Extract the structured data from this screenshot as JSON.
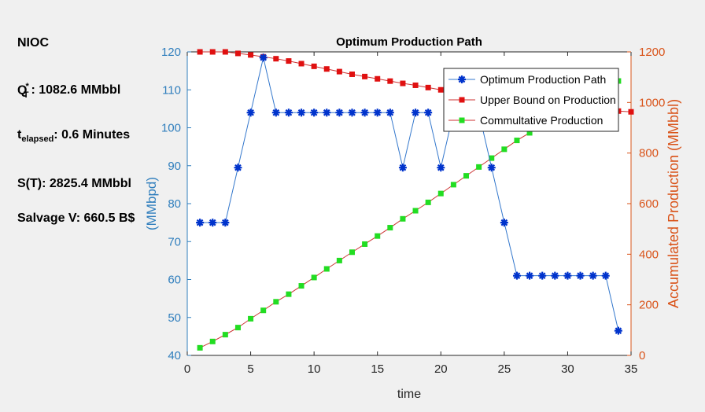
{
  "info_panel": {
    "company": "NIOC",
    "q_symbol": "Q",
    "q_sub": "T",
    "q_sup": "*",
    "q_value": ":  1082.6  MMbbl",
    "t_symbol": "t",
    "t_sub": "elapsed",
    "t_value": ":  0.6 Minutes",
    "s_text": "S(T): 2825.4  MMbbl",
    "salvage_text": "Salvage V: 660.5  B$"
  },
  "colors": {
    "figure_bg": "#f0f0f0",
    "axes_bg": "#ffffff",
    "left_axis": "#2f7ebd",
    "right_axis": "#d95319",
    "series_blue": "#0033cc",
    "series_red": "#e01010",
    "series_green": "#22dd22",
    "line_blue": "#3377cc",
    "line_red": "#cc3333",
    "line_green": "#cc3333"
  },
  "chart_data": {
    "type": "line",
    "title": "Optimum Production Path",
    "xlabel": "time",
    "ylabel_left": "(MMbpd)",
    "ylabel_right": "Accumulated Production (MMbbl)",
    "xlim": [
      0,
      35
    ],
    "ylim_left": [
      40,
      120
    ],
    "ylim_right": [
      0,
      1200
    ],
    "x_ticks": [
      0,
      5,
      10,
      15,
      20,
      25,
      30,
      35
    ],
    "y_left_ticks": [
      40,
      50,
      60,
      70,
      80,
      90,
      100,
      110,
      120
    ],
    "y_right_ticks": [
      0,
      200,
      400,
      600,
      800,
      1000,
      1200
    ],
    "legend_position": "top-right",
    "series": [
      {
        "name": "Optimum Production Path",
        "axis": "left",
        "marker": "star",
        "x": [
          1,
          2,
          3,
          4,
          5,
          6,
          7,
          8,
          9,
          10,
          11,
          12,
          13,
          14,
          15,
          16,
          17,
          18,
          19,
          20,
          21,
          22,
          23,
          24,
          25,
          26,
          27,
          28,
          29,
          30,
          31,
          32,
          33,
          34
        ],
        "values": [
          75,
          75,
          75,
          89.5,
          104,
          118.5,
          104,
          104,
          104,
          104,
          104,
          104,
          104,
          104,
          104,
          104,
          89.5,
          104,
          104,
          89.5,
          104,
          104,
          104,
          89.5,
          75,
          61,
          61,
          61,
          61,
          61,
          61,
          61,
          61,
          46.5
        ]
      },
      {
        "name": "Upper Bound on Production",
        "axis": "left",
        "marker": "square",
        "x": [
          1,
          2,
          3,
          4,
          5,
          6,
          7,
          8,
          9,
          10,
          11,
          12,
          13,
          14,
          15,
          16,
          17,
          18,
          19,
          20,
          21,
          22,
          23,
          24,
          25,
          26,
          27,
          28,
          29,
          30,
          31,
          32,
          33,
          34,
          35
        ],
        "values": [
          120,
          120,
          120,
          119.6,
          119.2,
          118.7,
          118.2,
          117.6,
          116.9,
          116.2,
          115.5,
          114.8,
          114.1,
          113.5,
          112.9,
          112.3,
          111.7,
          111.2,
          110.6,
          110,
          109.5,
          109,
          108.5,
          108,
          107.5,
          107.1,
          106.7,
          106.3,
          105.9,
          105.5,
          105.2,
          104.9,
          104.6,
          104.4,
          104.2
        ]
      },
      {
        "name": "Commultative Production",
        "axis": "right",
        "marker": "square",
        "x": [
          1,
          2,
          3,
          4,
          5,
          6,
          7,
          8,
          9,
          10,
          11,
          12,
          13,
          14,
          15,
          16,
          17,
          18,
          19,
          20,
          21,
          22,
          23,
          24,
          25,
          26,
          27,
          28,
          29,
          30,
          31,
          32,
          33,
          34
        ],
        "values": [
          30,
          55,
          82,
          110,
          145,
          178,
          212,
          242,
          275,
          308,
          342,
          375,
          408,
          440,
          472,
          505,
          540,
          572,
          605,
          640,
          675,
          710,
          745,
          780,
          815,
          850,
          880,
          912,
          942,
          970,
          1000,
          1030,
          1060,
          1085
        ]
      }
    ]
  }
}
